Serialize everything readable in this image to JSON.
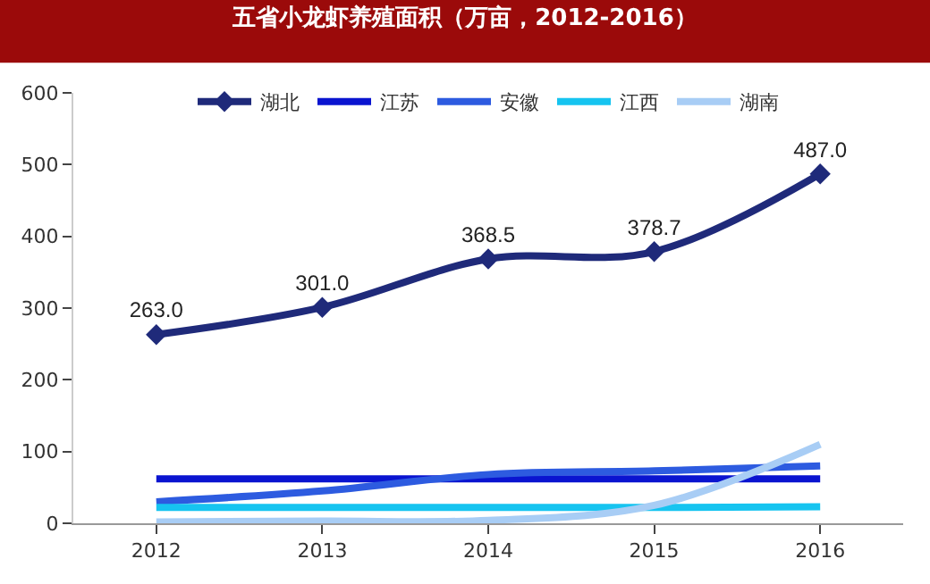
{
  "chart_data": {
    "type": "line",
    "title": "五省小龙虾养殖面积（万亩，2012-2016）",
    "categories": [
      "2012",
      "2013",
      "2014",
      "2015",
      "2016"
    ],
    "series": [
      {
        "name": "湖北",
        "color": "#1f2a7a",
        "values": [
          263.0,
          301.0,
          368.5,
          378.7,
          487.0
        ],
        "marker": "diamond",
        "value_labels": [
          "263.0",
          "301.0",
          "368.5",
          "378.7",
          "487.0"
        ]
      },
      {
        "name": "江苏",
        "color": "#0a14d0",
        "values": [
          62,
          62,
          62,
          62,
          62
        ],
        "marker": "none"
      },
      {
        "name": "安徽",
        "color": "#2d5be0",
        "values": [
          30,
          45,
          68,
          73,
          80
        ],
        "marker": "none"
      },
      {
        "name": "江西",
        "color": "#16c4f0",
        "values": [
          22,
          22,
          22,
          22,
          23
        ],
        "marker": "none"
      },
      {
        "name": "湖南",
        "color": "#a8cdf5",
        "values": [
          2,
          3,
          4,
          25,
          110
        ],
        "marker": "none"
      }
    ],
    "ylim": [
      0,
      600
    ],
    "yticks": [
      0,
      100,
      200,
      300,
      400,
      500,
      600
    ],
    "legend": "top"
  }
}
